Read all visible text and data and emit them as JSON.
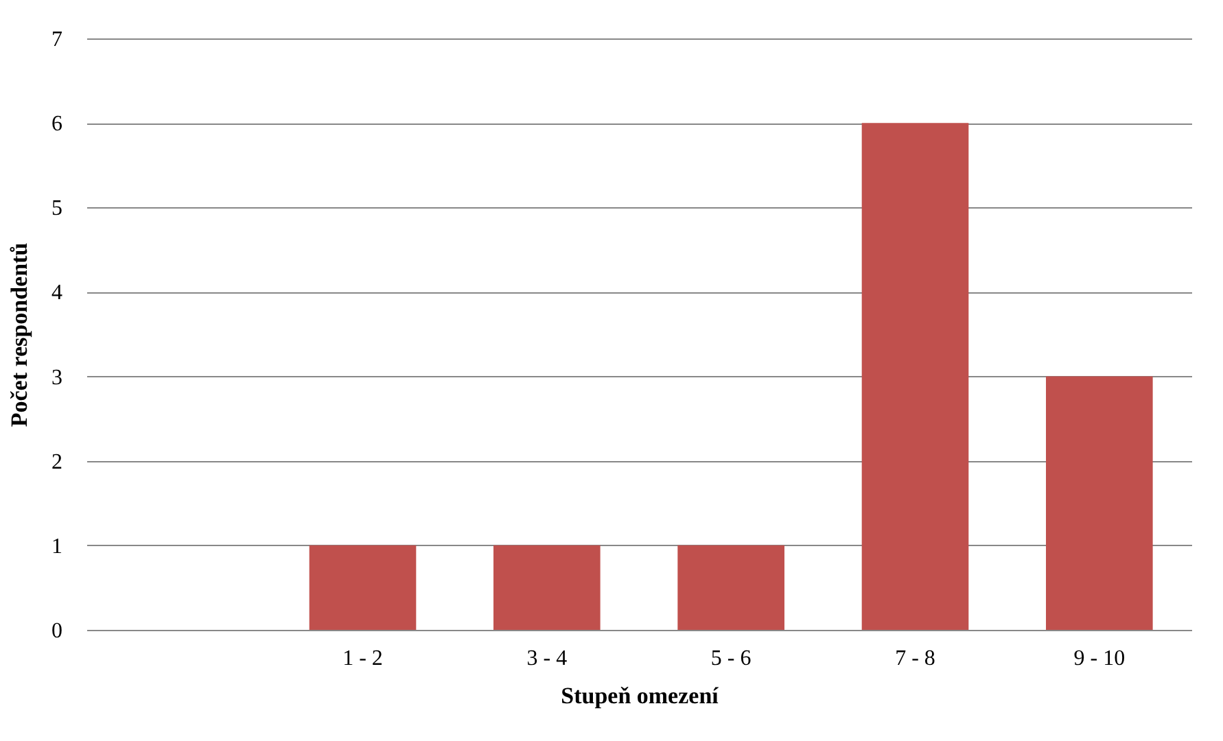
{
  "chart_data": {
    "type": "bar",
    "xlabel": "Stupeň omezení",
    "ylabel": "Počet respondentů",
    "categories": [
      null,
      "1 - 2",
      "3 - 4",
      "5 - 6",
      "7 - 8",
      "9 - 10"
    ],
    "values": [
      null,
      1,
      1,
      1,
      6,
      3
    ],
    "color": "#c0504d",
    "ylim": [
      0,
      7
    ],
    "yticks": [
      0,
      1,
      2,
      3,
      4,
      5,
      6,
      7
    ],
    "grid": "y"
  }
}
